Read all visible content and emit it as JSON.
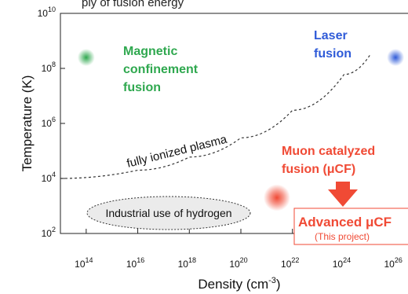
{
  "header_fragment": "ply of fusion energy",
  "chart_data": {
    "type": "scatter",
    "xscale": "log",
    "yscale": "log",
    "xlim": [
      10000000000000.0,
      1e+27
    ],
    "ylim": [
      100.0,
      10000000000.0
    ],
    "x_ticks": [
      {
        "value": 100000000000000.0,
        "base": "10",
        "exp": "14"
      },
      {
        "value": 1e+16,
        "base": "10",
        "exp": "16"
      },
      {
        "value": 1e+18,
        "base": "10",
        "exp": "18"
      },
      {
        "value": 1e+20,
        "base": "10",
        "exp": "20"
      },
      {
        "value": 1e+22,
        "base": "10",
        "exp": "22"
      },
      {
        "value": 1e+24,
        "base": "10",
        "exp": "24"
      },
      {
        "value": 1e+26,
        "base": "10",
        "exp": "26"
      }
    ],
    "y_ticks": [
      {
        "value": 100.0,
        "base": "10",
        "exp": "2"
      },
      {
        "value": 10000.0,
        "base": "10",
        "exp": "4"
      },
      {
        "value": 1000000.0,
        "base": "10",
        "exp": "6"
      },
      {
        "value": 100000000.0,
        "base": "10",
        "exp": "8"
      },
      {
        "value": 10000000000.0,
        "base": "10",
        "exp": "10"
      }
    ],
    "xlabel": {
      "main": "Density (cm",
      "sup": "-3",
      "tail": ")"
    },
    "ylabel": "Temperature (K)",
    "points": [
      {
        "name": "Magnetic confinement fusion",
        "x": 100000000000000.0,
        "y": 250000000.0,
        "color": "#2fa84f"
      },
      {
        "name": "Laser fusion",
        "x": 1e+26,
        "y": 250000000.0,
        "color": "#2f5bd8"
      },
      {
        "name": "Muon catalyzed fusion",
        "x": 2.5e+21,
        "y": 2000.0,
        "color": "#f04a35"
      }
    ],
    "plasma_curve": {
      "label": "fully ionized plasma",
      "points": [
        [
          10000000000000.0,
          10000.0
        ],
        [
          1e+16,
          20000.0
        ],
        [
          1e+18,
          60000.0
        ],
        [
          1e+20,
          300000.0
        ],
        [
          1e+22,
          3000000.0
        ],
        [
          1e+24,
          60000000.0
        ],
        [
          1e+25,
          300000000.0
        ]
      ]
    },
    "annotations": {
      "magnetic": [
        "Magnetic",
        "confinement",
        "fusion"
      ],
      "laser": [
        "Laser",
        "fusion"
      ],
      "muon": [
        "Muon catalyzed",
        "fusion (μCF)"
      ],
      "industrial": "Industrial use of hydrogen",
      "advanced_title": "Advanced μCF",
      "advanced_sub": "(This project)"
    },
    "colors": {
      "green": "#2fa84f",
      "blue": "#2f5bd8",
      "red": "#f04a35",
      "ellipse_fill": "#ebebeb"
    }
  }
}
